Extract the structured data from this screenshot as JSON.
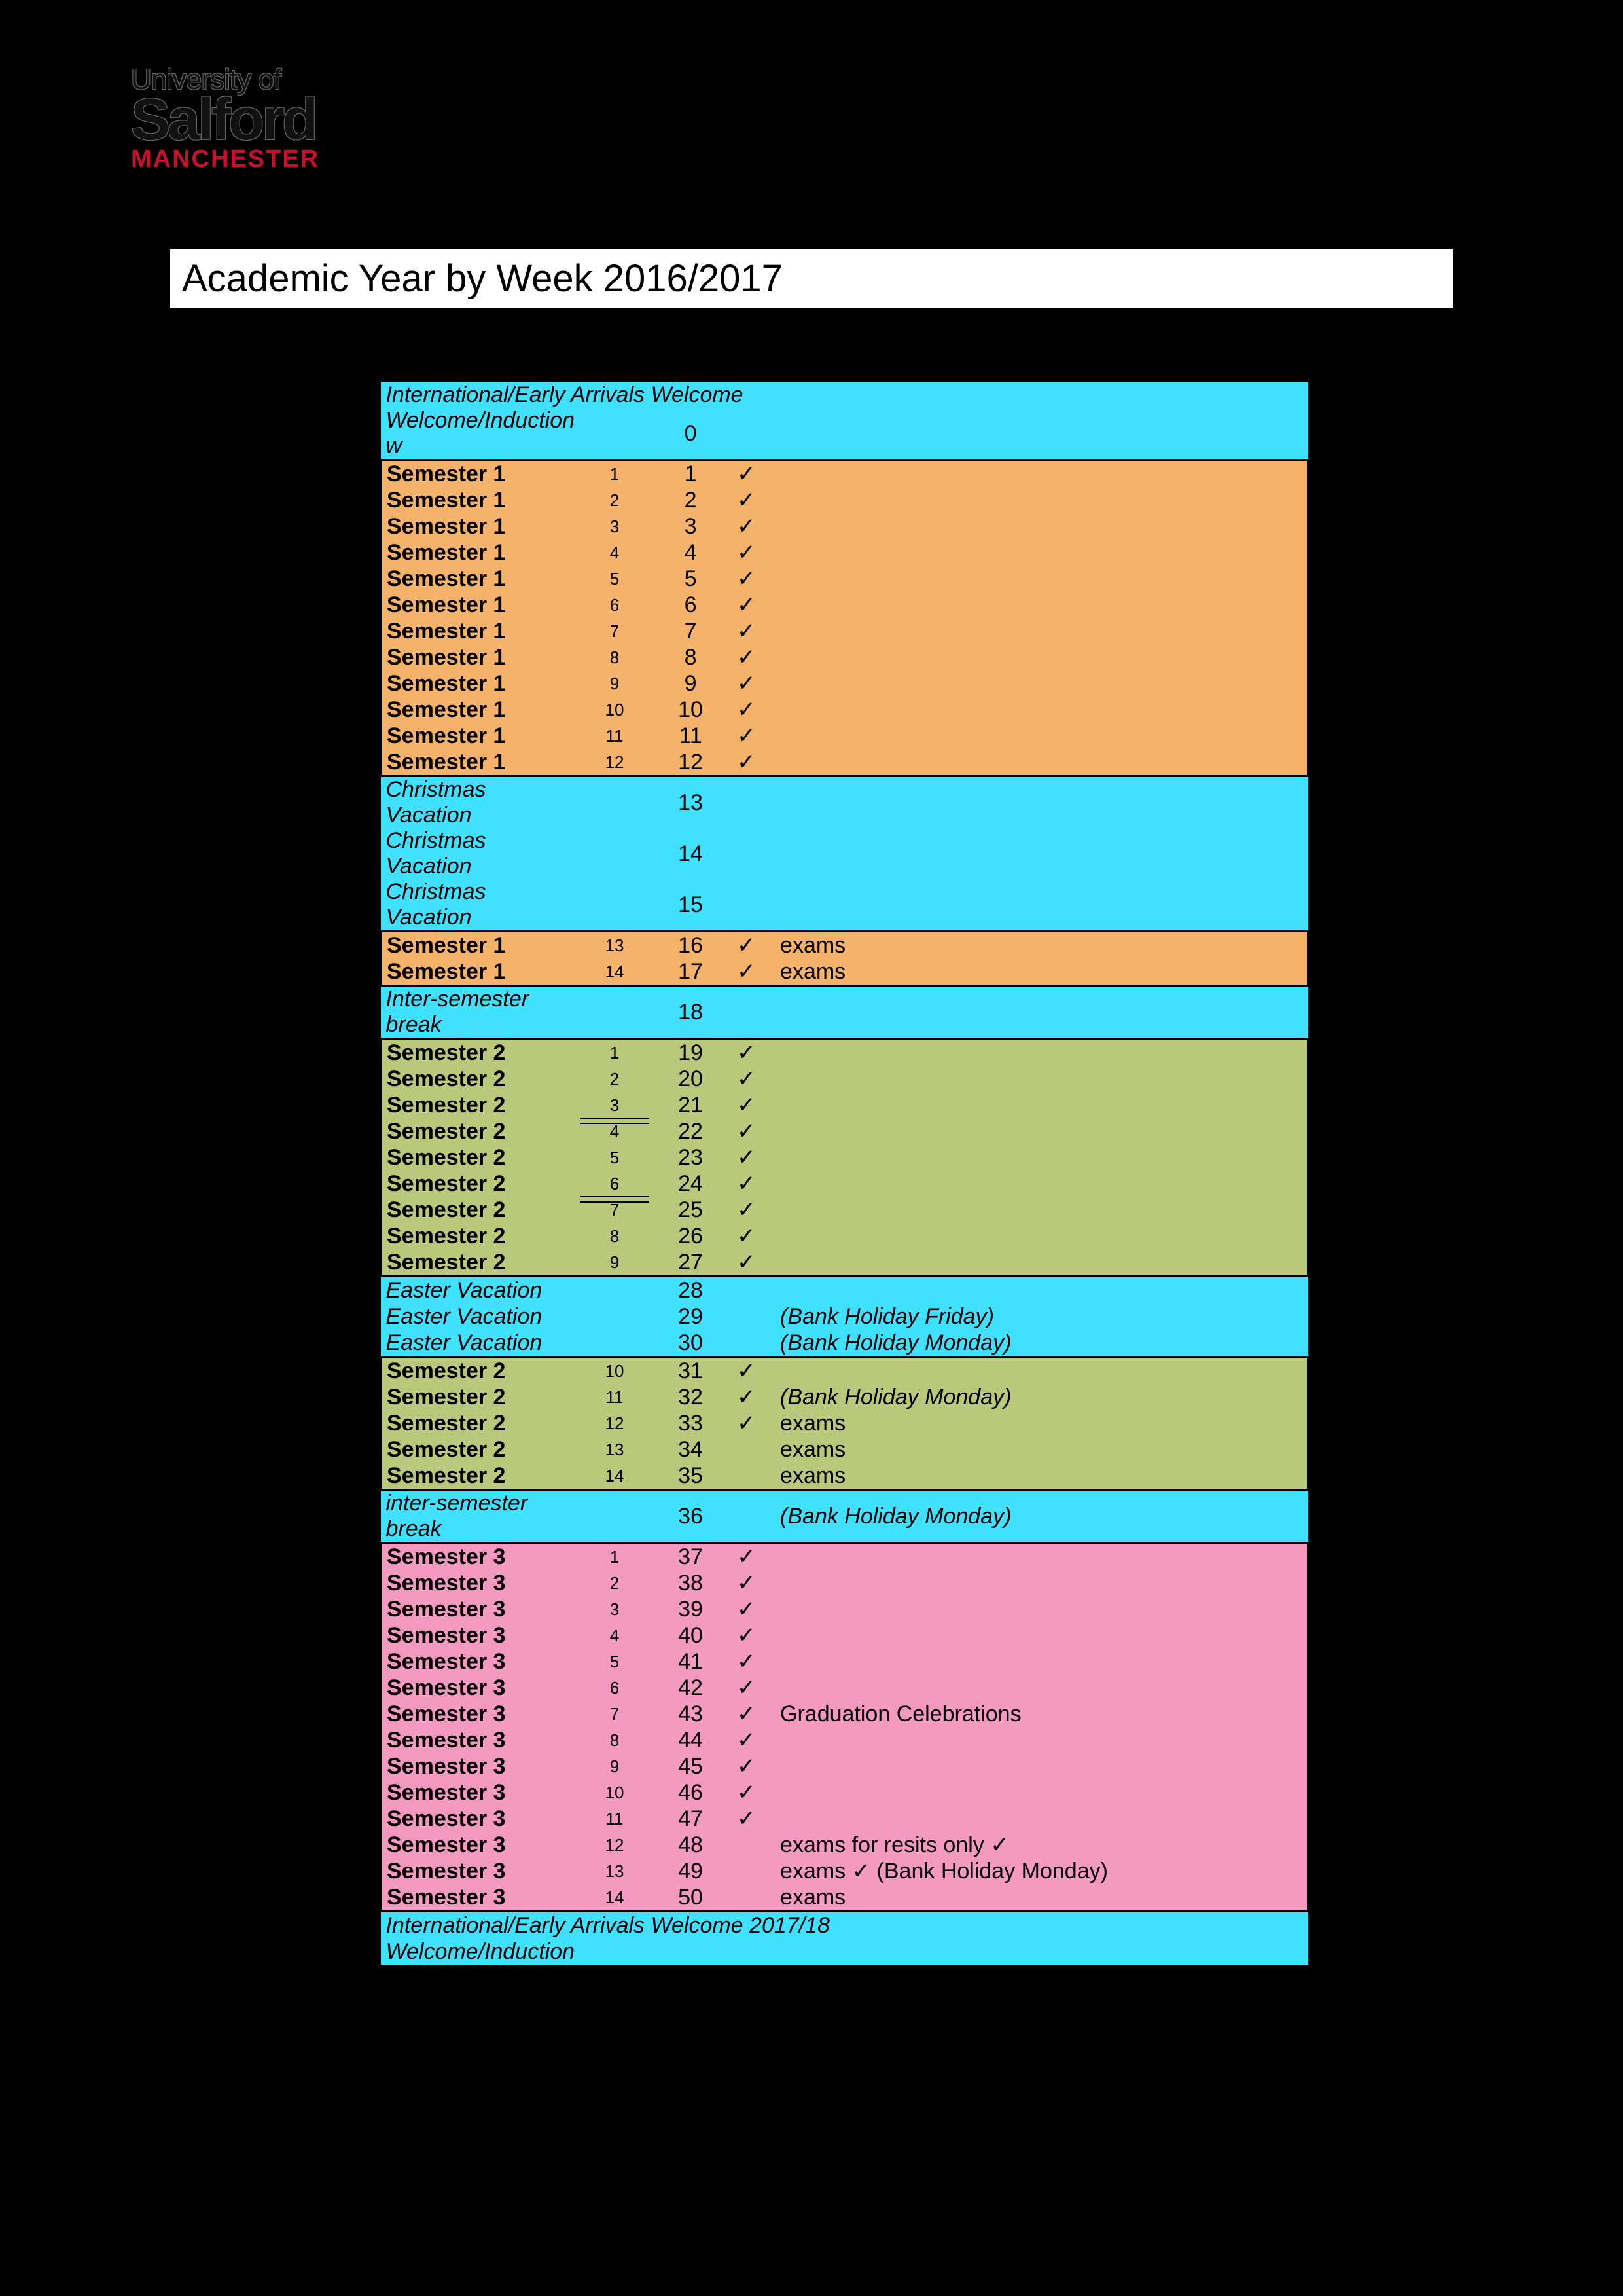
{
  "logo": {
    "line1": "University of",
    "line2": "Salford",
    "line3": "MANCHESTER"
  },
  "title": "Academic Year by Week 2016/2017",
  "colors": {
    "cyan": "#40e0ff",
    "orange": "#f4b26a",
    "olive": "#b9c87a",
    "pink": "#f49ac1",
    "background": "#000000",
    "title_bg": "#ffffff",
    "title_fg": "#000000",
    "logo_red": "#c8102e"
  },
  "tick_glyph": "✓",
  "rows": [
    {
      "color": "cyan",
      "label": "International/Early Arrivals Welcome",
      "italic": true,
      "span": true,
      "blkTop": true
    },
    {
      "color": "cyan",
      "label": "Welcome/Induction w",
      "italic": true,
      "swk": "",
      "wk": "0",
      "blkBottom": true
    },
    {
      "color": "orange",
      "label": "Semester 1",
      "bold": true,
      "swk": "1",
      "wk": "1",
      "tick": true,
      "blkTop": true,
      "group": true
    },
    {
      "color": "orange",
      "label": "Semester 1",
      "bold": true,
      "swk": "2",
      "wk": "2",
      "tick": true,
      "group": true
    },
    {
      "color": "orange",
      "label": "Semester 1",
      "bold": true,
      "swk": "3",
      "wk": "3",
      "tick": true,
      "group": true
    },
    {
      "color": "orange",
      "label": "Semester 1",
      "bold": true,
      "swk": "4",
      "wk": "4",
      "tick": true,
      "group": true
    },
    {
      "color": "orange",
      "label": "Semester 1",
      "bold": true,
      "swk": "5",
      "wk": "5",
      "tick": true,
      "group": true
    },
    {
      "color": "orange",
      "label": "Semester 1",
      "bold": true,
      "swk": "6",
      "wk": "6",
      "tick": true,
      "group": true
    },
    {
      "color": "orange",
      "label": "Semester 1",
      "bold": true,
      "swk": "7",
      "wk": "7",
      "tick": true,
      "group": true
    },
    {
      "color": "orange",
      "label": "Semester 1",
      "bold": true,
      "swk": "8",
      "wk": "8",
      "tick": true,
      "group": true
    },
    {
      "color": "orange",
      "label": "Semester 1",
      "bold": true,
      "swk": "9",
      "wk": "9",
      "tick": true,
      "group": true
    },
    {
      "color": "orange",
      "label": "Semester 1",
      "bold": true,
      "swk": "10",
      "wk": "10",
      "tick": true,
      "group": true
    },
    {
      "color": "orange",
      "label": "Semester 1",
      "bold": true,
      "swk": "11",
      "wk": "11",
      "tick": true,
      "group": true
    },
    {
      "color": "orange",
      "label": "Semester 1",
      "bold": true,
      "swk": "12",
      "wk": "12",
      "tick": true,
      "group": true,
      "blkBottom": true
    },
    {
      "color": "cyan",
      "label": "Christmas Vacation",
      "italic": true,
      "wk": "13",
      "hruleTop": true
    },
    {
      "color": "cyan",
      "label": "Christmas Vacation",
      "italic": true,
      "wk": "14"
    },
    {
      "color": "cyan",
      "label": "Christmas Vacation",
      "italic": true,
      "wk": "15",
      "hrule": true
    },
    {
      "color": "orange",
      "label": "Semester 1",
      "bold": true,
      "swk": "13",
      "wk": "16",
      "tick": true,
      "note": "exams",
      "group": true,
      "blkTop": true
    },
    {
      "color": "orange",
      "label": "Semester 1",
      "bold": true,
      "swk": "14",
      "wk": "17",
      "tick": true,
      "note": "exams",
      "group": true,
      "blkBottom": true
    },
    {
      "color": "cyan",
      "label": "Inter-semester break",
      "italic": true,
      "wk": "18",
      "blkTop": true,
      "blkBottom": true
    },
    {
      "color": "olive",
      "label": "Semester 2",
      "bold": true,
      "swk": "1",
      "wk": "19",
      "tick": true,
      "group": true,
      "blkTop": true
    },
    {
      "color": "olive",
      "label": "Semester 2",
      "bold": true,
      "swk": "2",
      "wk": "20",
      "tick": true,
      "group": true
    },
    {
      "color": "olive",
      "label": "Semester 2",
      "bold": true,
      "swk": "3",
      "wk": "21",
      "tick": true,
      "group": true,
      "dbl": true
    },
    {
      "color": "olive",
      "label": "Semester 2",
      "bold": true,
      "swk": "4",
      "wk": "22",
      "tick": true,
      "group": true
    },
    {
      "color": "olive",
      "label": "Semester 2",
      "bold": true,
      "swk": "5",
      "wk": "23",
      "tick": true,
      "group": true
    },
    {
      "color": "olive",
      "label": "Semester 2",
      "bold": true,
      "swk": "6",
      "wk": "24",
      "tick": true,
      "group": true,
      "dbl": true
    },
    {
      "color": "olive",
      "label": "Semester 2",
      "bold": true,
      "swk": "7",
      "wk": "25",
      "tick": true,
      "group": true
    },
    {
      "color": "olive",
      "label": "Semester 2",
      "bold": true,
      "swk": "8",
      "wk": "26",
      "tick": true,
      "group": true
    },
    {
      "color": "olive",
      "label": "Semester 2",
      "bold": true,
      "swk": "9",
      "wk": "27",
      "tick": true,
      "group": true,
      "blkBottom": true
    },
    {
      "color": "cyan",
      "label": "Easter Vacation",
      "italic": true,
      "wk": "28"
    },
    {
      "color": "cyan",
      "label": "Easter Vacation",
      "italic": true,
      "wk": "29",
      "note": "(Bank Holiday Friday)",
      "noteItalic": true
    },
    {
      "color": "cyan",
      "label": "Easter Vacation",
      "italic": true,
      "wk": "30",
      "note": "(Bank Holiday Monday)",
      "noteItalic": true,
      "hrule": true
    },
    {
      "color": "olive",
      "label": "Semester 2",
      "bold": true,
      "swk": "10",
      "wk": "31",
      "tick": true,
      "group": true,
      "blkTop": true
    },
    {
      "color": "olive",
      "label": "Semester 2",
      "bold": true,
      "swk": "11",
      "wk": "32",
      "tick": true,
      "note": "(Bank Holiday Monday)",
      "noteItalic": true,
      "group": true
    },
    {
      "color": "olive",
      "label": "Semester 2",
      "bold": true,
      "swk": "12",
      "wk": "33",
      "tick": true,
      "note": "exams",
      "group": true
    },
    {
      "color": "olive",
      "label": "Semester 2",
      "bold": true,
      "swk": "13",
      "wk": "34",
      "note": "exams",
      "group": true
    },
    {
      "color": "olive",
      "label": "Semester 2",
      "bold": true,
      "swk": "14",
      "wk": "35",
      "note": "exams",
      "group": true,
      "blkBottom": true
    },
    {
      "color": "cyan",
      "label": "inter-semester break",
      "italic": true,
      "wk": "36",
      "note": "(Bank Holiday Monday)",
      "noteItalic": true,
      "blkTop": true,
      "blkBottom": true
    },
    {
      "color": "pink",
      "label": "Semester 3",
      "bold": true,
      "swk": "1",
      "wk": "37",
      "tick": true,
      "group": true,
      "blkTop": true
    },
    {
      "color": "pink",
      "label": "Semester 3",
      "bold": true,
      "swk": "2",
      "wk": "38",
      "tick": true,
      "group": true
    },
    {
      "color": "pink",
      "label": "Semester 3",
      "bold": true,
      "swk": "3",
      "wk": "39",
      "tick": true,
      "group": true
    },
    {
      "color": "pink",
      "label": "Semester 3",
      "bold": true,
      "swk": "4",
      "wk": "40",
      "tick": true,
      "group": true
    },
    {
      "color": "pink",
      "label": "Semester 3",
      "bold": true,
      "swk": "5",
      "wk": "41",
      "tick": true,
      "group": true
    },
    {
      "color": "pink",
      "label": "Semester 3",
      "bold": true,
      "swk": "6",
      "wk": "42",
      "tick": true,
      "group": true
    },
    {
      "color": "pink",
      "label": "Semester 3",
      "bold": true,
      "swk": "7",
      "wk": "43",
      "tick": true,
      "note": "Graduation Celebrations",
      "group": true
    },
    {
      "color": "pink",
      "label": "Semester 3",
      "bold": true,
      "swk": "8",
      "wk": "44",
      "tick": true,
      "group": true
    },
    {
      "color": "pink",
      "label": "Semester 3",
      "bold": true,
      "swk": "9",
      "wk": "45",
      "tick": true,
      "group": true
    },
    {
      "color": "pink",
      "label": "Semester 3",
      "bold": true,
      "swk": "10",
      "wk": "46",
      "tick": true,
      "group": true
    },
    {
      "color": "pink",
      "label": "Semester 3",
      "bold": true,
      "swk": "11",
      "wk": "47",
      "tick": true,
      "group": true
    },
    {
      "color": "pink",
      "label": "Semester 3",
      "bold": true,
      "swk": "12",
      "wk": "48",
      "note": "exams for resits only ✓",
      "group": true
    },
    {
      "color": "pink",
      "label": "Semester 3",
      "bold": true,
      "swk": "13",
      "wk": "49",
      "note": "exams ✓   (Bank Holiday Monday)",
      "noteMixed": true,
      "group": true
    },
    {
      "color": "pink",
      "label": "Semester 3",
      "bold": true,
      "swk": "14",
      "wk": "50",
      "note": "exams",
      "group": true,
      "blkBottom": true
    },
    {
      "color": "cyan",
      "label": "International/Early Arrivals Welcome 2017/18",
      "italic": true,
      "span": true,
      "blkTop": true
    },
    {
      "color": "cyan",
      "label": "Welcome/Induction",
      "italic": true,
      "span": true,
      "blkBottom": true
    }
  ]
}
